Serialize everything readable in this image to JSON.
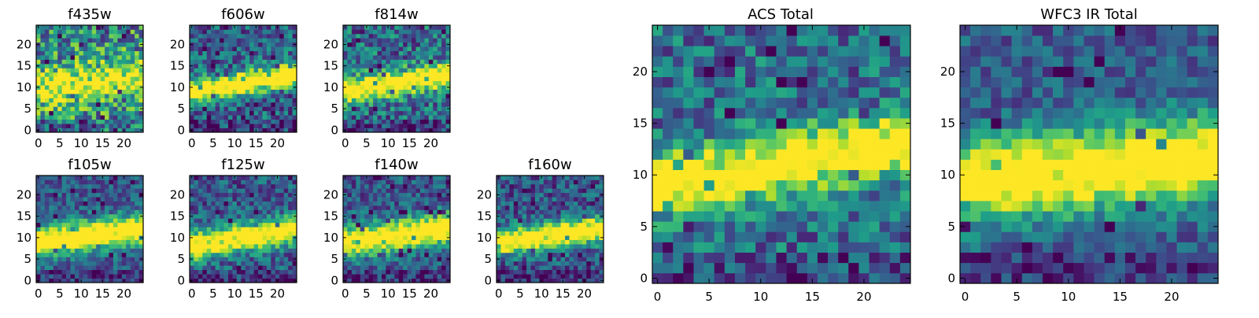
{
  "chart_data": {
    "type": "heatmap",
    "colormap": "viridis",
    "grid": false,
    "pixels_per_side": 25,
    "panels": [
      {
        "title": "f435w",
        "xticks": [
          0,
          5,
          10,
          15,
          20
        ],
        "yticks": [
          0,
          5,
          10,
          15,
          20
        ],
        "xlim": [
          -0.5,
          24.5
        ],
        "ylim": [
          -0.5,
          24.5
        ],
        "band_center_y": 11,
        "band_slope": 0.08,
        "band_peak": 0.55,
        "band_width": 4.5,
        "noise": 0.38,
        "base": 0.55,
        "seed": 11
      },
      {
        "title": "f606w",
        "xticks": [
          0,
          5,
          10,
          15,
          20
        ],
        "yticks": [
          0,
          5,
          10,
          15,
          20
        ],
        "xlim": [
          -0.5,
          24.5
        ],
        "ylim": [
          -0.5,
          24.5
        ],
        "band_center_y": 11,
        "band_slope": 0.18,
        "band_peak": 0.95,
        "band_width": 2.6,
        "noise": 0.28,
        "base": 0.38,
        "seed": 23
      },
      {
        "title": "f814w",
        "xticks": [
          0,
          5,
          10,
          15,
          20
        ],
        "yticks": [
          0,
          5,
          10,
          15,
          20
        ],
        "xlim": [
          -0.5,
          24.5
        ],
        "ylim": [
          -0.5,
          24.5
        ],
        "band_center_y": 11,
        "band_slope": 0.15,
        "band_peak": 0.92,
        "band_width": 2.8,
        "noise": 0.3,
        "base": 0.42,
        "seed": 37
      },
      {
        "title": "f105w",
        "xticks": [
          0,
          5,
          10,
          15,
          20
        ],
        "yticks": [
          0,
          5,
          10,
          15,
          20
        ],
        "xlim": [
          -0.5,
          24.5
        ],
        "ylim": [
          -0.5,
          24.5
        ],
        "band_center_y": 10.5,
        "band_slope": 0.12,
        "band_peak": 0.95,
        "band_width": 3.4,
        "noise": 0.2,
        "base": 0.35,
        "seed": 41
      },
      {
        "title": "f125w",
        "xticks": [
          0,
          5,
          10,
          15,
          20
        ],
        "yticks": [
          0,
          5,
          10,
          15,
          20
        ],
        "xlim": [
          -0.5,
          24.5
        ],
        "ylim": [
          -0.5,
          24.5
        ],
        "band_center_y": 10,
        "band_slope": 0.16,
        "band_peak": 0.95,
        "band_width": 3.2,
        "noise": 0.24,
        "base": 0.35,
        "seed": 53
      },
      {
        "title": "f140w",
        "xticks": [
          0,
          5,
          10,
          15,
          20
        ],
        "yticks": [
          0,
          5,
          10,
          15,
          20
        ],
        "xlim": [
          -0.5,
          24.5
        ],
        "ylim": [
          -0.5,
          24.5
        ],
        "band_center_y": 10.5,
        "band_slope": 0.14,
        "band_peak": 0.95,
        "band_width": 3.4,
        "noise": 0.22,
        "base": 0.35,
        "seed": 67
      },
      {
        "title": "f160w",
        "xticks": [
          0,
          5,
          10,
          15,
          20
        ],
        "yticks": [
          0,
          5,
          10,
          15,
          20
        ],
        "xlim": [
          -0.5,
          24.5
        ],
        "ylim": [
          -0.5,
          24.5
        ],
        "band_center_y": 10.5,
        "band_slope": 0.13,
        "band_peak": 0.95,
        "band_width": 3.0,
        "noise": 0.24,
        "base": 0.33,
        "seed": 79
      },
      {
        "title": "ACS Total",
        "xticks": [
          0,
          5,
          10,
          15,
          20
        ],
        "yticks": [
          0,
          5,
          10,
          15,
          20
        ],
        "xlim": [
          -0.5,
          24.5
        ],
        "ylim": [
          -0.5,
          24.5
        ],
        "band_center_y": 11,
        "band_slope": 0.16,
        "band_peak": 0.9,
        "band_width": 2.8,
        "noise": 0.26,
        "base": 0.42,
        "seed": 97
      },
      {
        "title": "WFC3 IR Total",
        "xticks": [
          0,
          5,
          10,
          15,
          20
        ],
        "yticks": [
          0,
          5,
          10,
          15,
          20
        ],
        "xlim": [
          -0.5,
          24.5
        ],
        "ylim": [
          -0.5,
          24.5
        ],
        "band_center_y": 10.5,
        "band_slope": 0.1,
        "band_peak": 0.95,
        "band_width": 3.8,
        "noise": 0.18,
        "base": 0.35,
        "seed": 113
      }
    ]
  }
}
